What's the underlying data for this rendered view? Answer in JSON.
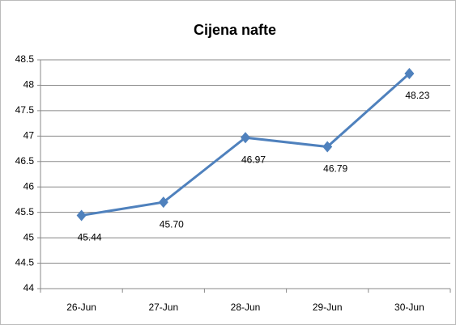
{
  "chart_data": {
    "type": "line",
    "title": "Cijena nafte",
    "categories": [
      "26-Jun",
      "27-Jun",
      "28-Jun",
      "29-Jun",
      "30-Jun"
    ],
    "series": [
      {
        "color": "#4f81bd",
        "values": [
          45.44,
          45.7,
          46.97,
          46.79,
          48.23
        ],
        "value_labels": [
          "45.44",
          "45.70",
          "46.97",
          "46.79",
          "48.23"
        ]
      }
    ],
    "ylim": [
      44,
      48.5
    ],
    "yticks": [
      44,
      44.5,
      45,
      45.5,
      46,
      46.5,
      47,
      47.5,
      48,
      48.5
    ],
    "grid": true
  }
}
